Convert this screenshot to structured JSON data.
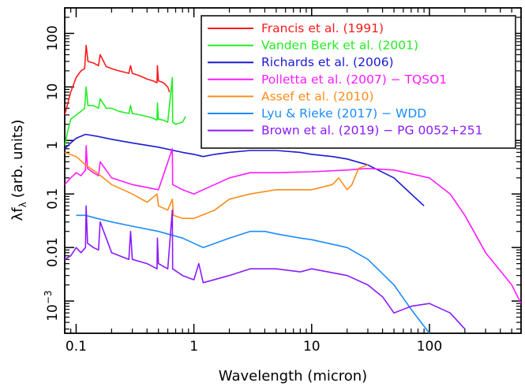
{
  "chart_data": {
    "type": "line",
    "xlabel": "Wavelength (micron)",
    "ylabel": "λf",
    "ylabel_sub": "λ",
    "ylabel_rest": "(arb. units)",
    "x_scale": "log",
    "y_scale": "log",
    "xlim": [
      0.08,
      600
    ],
    "ylim": [
      0.00025,
      300
    ],
    "x_ticks": [
      {
        "value": 0.1,
        "label": "0.1"
      },
      {
        "value": 1,
        "label": "1"
      },
      {
        "value": 10,
        "label": "10"
      },
      {
        "value": 100,
        "label": "100"
      }
    ],
    "y_ticks": [
      {
        "value": 0.001,
        "label": "10",
        "sup": "−3"
      },
      {
        "value": 0.01,
        "label": "0.01"
      },
      {
        "value": 0.1,
        "label": "0.1"
      },
      {
        "value": 1,
        "label": "1"
      },
      {
        "value": 10,
        "label": "10"
      },
      {
        "value": 100,
        "label": "100"
      }
    ],
    "grid": false,
    "legend_position": "top-right",
    "series": [
      {
        "name": "Francis et al. (1991)",
        "color": "#ff1a1a",
        "x": [
          0.08,
          0.085,
          0.09,
          0.1,
          0.11,
          0.118,
          0.1216,
          0.126,
          0.14,
          0.155,
          0.16,
          0.18,
          0.19,
          0.2,
          0.23,
          0.28,
          0.29,
          0.3,
          0.35,
          0.4,
          0.45,
          0.486,
          0.49,
          0.5,
          0.55,
          0.6,
          0.62
        ],
        "y": [
          3,
          5,
          8,
          15,
          20,
          22,
          60,
          30,
          28,
          25,
          40,
          24,
          23,
          22,
          20,
          18,
          25,
          18,
          16,
          14,
          13,
          12,
          25,
          13,
          12,
          10,
          8
        ]
      },
      {
        "name": "Vanden Berk et al. (2001)",
        "color": "#22ee22",
        "x": [
          0.08,
          0.085,
          0.09,
          0.1,
          0.11,
          0.118,
          0.1216,
          0.126,
          0.14,
          0.155,
          0.16,
          0.18,
          0.19,
          0.2,
          0.23,
          0.28,
          0.29,
          0.3,
          0.35,
          0.4,
          0.45,
          0.486,
          0.49,
          0.5,
          0.55,
          0.6,
          0.656,
          0.66,
          0.7,
          0.8,
          0.85
        ],
        "y": [
          0.8,
          1.5,
          2.5,
          3,
          3.5,
          4,
          10,
          4.5,
          4.5,
          4,
          6,
          4,
          4,
          4,
          3.5,
          3.2,
          4.5,
          3.2,
          3,
          2.8,
          2.6,
          2.4,
          5,
          2.5,
          2.4,
          2.2,
          15,
          2.2,
          2,
          2.2,
          2.8
        ]
      },
      {
        "name": "Richards et al. (2006)",
        "color": "#1a1ad4",
        "x": [
          0.08,
          0.09,
          0.1,
          0.12,
          0.15,
          0.2,
          0.3,
          0.5,
          0.8,
          1,
          1.2,
          1.5,
          2,
          3,
          5,
          8,
          10,
          15,
          20,
          30,
          50,
          70,
          90
        ],
        "y": [
          0.7,
          0.9,
          1.1,
          1.3,
          1.2,
          1.05,
          0.9,
          0.75,
          0.6,
          0.55,
          0.5,
          0.55,
          0.6,
          0.65,
          0.65,
          0.6,
          0.55,
          0.5,
          0.45,
          0.35,
          0.2,
          0.1,
          0.06
        ]
      },
      {
        "name": "Polletta et al. (2007) − TQSO1",
        "color": "#ff1aff",
        "x": [
          0.08,
          0.09,
          0.1,
          0.11,
          0.12,
          0.1216,
          0.125,
          0.14,
          0.155,
          0.16,
          0.2,
          0.3,
          0.5,
          0.656,
          0.66,
          0.8,
          1,
          1.2,
          2,
          3,
          5,
          10,
          20,
          30,
          50,
          100,
          150,
          200,
          300,
          500,
          600
        ],
        "y": [
          0.15,
          0.2,
          0.25,
          0.22,
          0.28,
          0.8,
          0.3,
          0.25,
          0.22,
          0.4,
          0.2,
          0.15,
          0.12,
          0.7,
          0.15,
          0.12,
          0.1,
          0.12,
          0.2,
          0.25,
          0.25,
          0.26,
          0.28,
          0.3,
          0.28,
          0.2,
          0.1,
          0.04,
          0.008,
          0.002,
          0.0009
        ]
      },
      {
        "name": "Assef et al. (2010)",
        "color": "#ff8c1a",
        "x": [
          0.08,
          0.1,
          0.12,
          0.15,
          0.2,
          0.3,
          0.4,
          0.486,
          0.5,
          0.6,
          0.656,
          0.67,
          0.8,
          1,
          1.5,
          2,
          3,
          5,
          10,
          15,
          17,
          20,
          22,
          25,
          30
        ],
        "y": [
          0.6,
          0.5,
          0.35,
          0.25,
          0.15,
          0.1,
          0.07,
          0.1,
          0.06,
          0.05,
          0.08,
          0.04,
          0.035,
          0.035,
          0.05,
          0.08,
          0.1,
          0.12,
          0.12,
          0.15,
          0.2,
          0.12,
          0.15,
          0.3,
          0.35
        ]
      },
      {
        "name": "Lyu & Rieke (2017) − WDD",
        "color": "#1a8cff",
        "x": [
          0.1,
          0.12,
          0.15,
          0.2,
          0.3,
          0.5,
          0.8,
          1,
          1.2,
          2,
          3,
          4,
          5,
          8,
          10,
          20,
          30,
          50,
          70,
          100
        ],
        "y": [
          0.04,
          0.04,
          0.035,
          0.03,
          0.025,
          0.02,
          0.015,
          0.012,
          0.01,
          0.015,
          0.02,
          0.02,
          0.018,
          0.015,
          0.014,
          0.01,
          0.006,
          0.002,
          0.0007,
          0.00025
        ]
      },
      {
        "name": "Brown et al. (2019) − PG 0052+251",
        "color": "#8c1aff",
        "x": [
          0.08,
          0.09,
          0.1,
          0.11,
          0.12,
          0.1216,
          0.125,
          0.14,
          0.155,
          0.16,
          0.2,
          0.28,
          0.29,
          0.3,
          0.4,
          0.486,
          0.49,
          0.5,
          0.6,
          0.656,
          0.66,
          0.8,
          1,
          1.1,
          1.2,
          2,
          3,
          5,
          8,
          10,
          20,
          30,
          40,
          50,
          70,
          100,
          150,
          200
        ],
        "y": [
          0.006,
          0.007,
          0.01,
          0.008,
          0.01,
          0.06,
          0.012,
          0.01,
          0.009,
          0.03,
          0.008,
          0.006,
          0.02,
          0.006,
          0.005,
          0.004,
          0.015,
          0.005,
          0.004,
          0.05,
          0.004,
          0.003,
          0.0025,
          0.005,
          0.0022,
          0.003,
          0.004,
          0.004,
          0.0035,
          0.004,
          0.003,
          0.002,
          0.0012,
          0.0006,
          0.0008,
          0.0009,
          0.0006,
          0.0003
        ]
      }
    ]
  }
}
